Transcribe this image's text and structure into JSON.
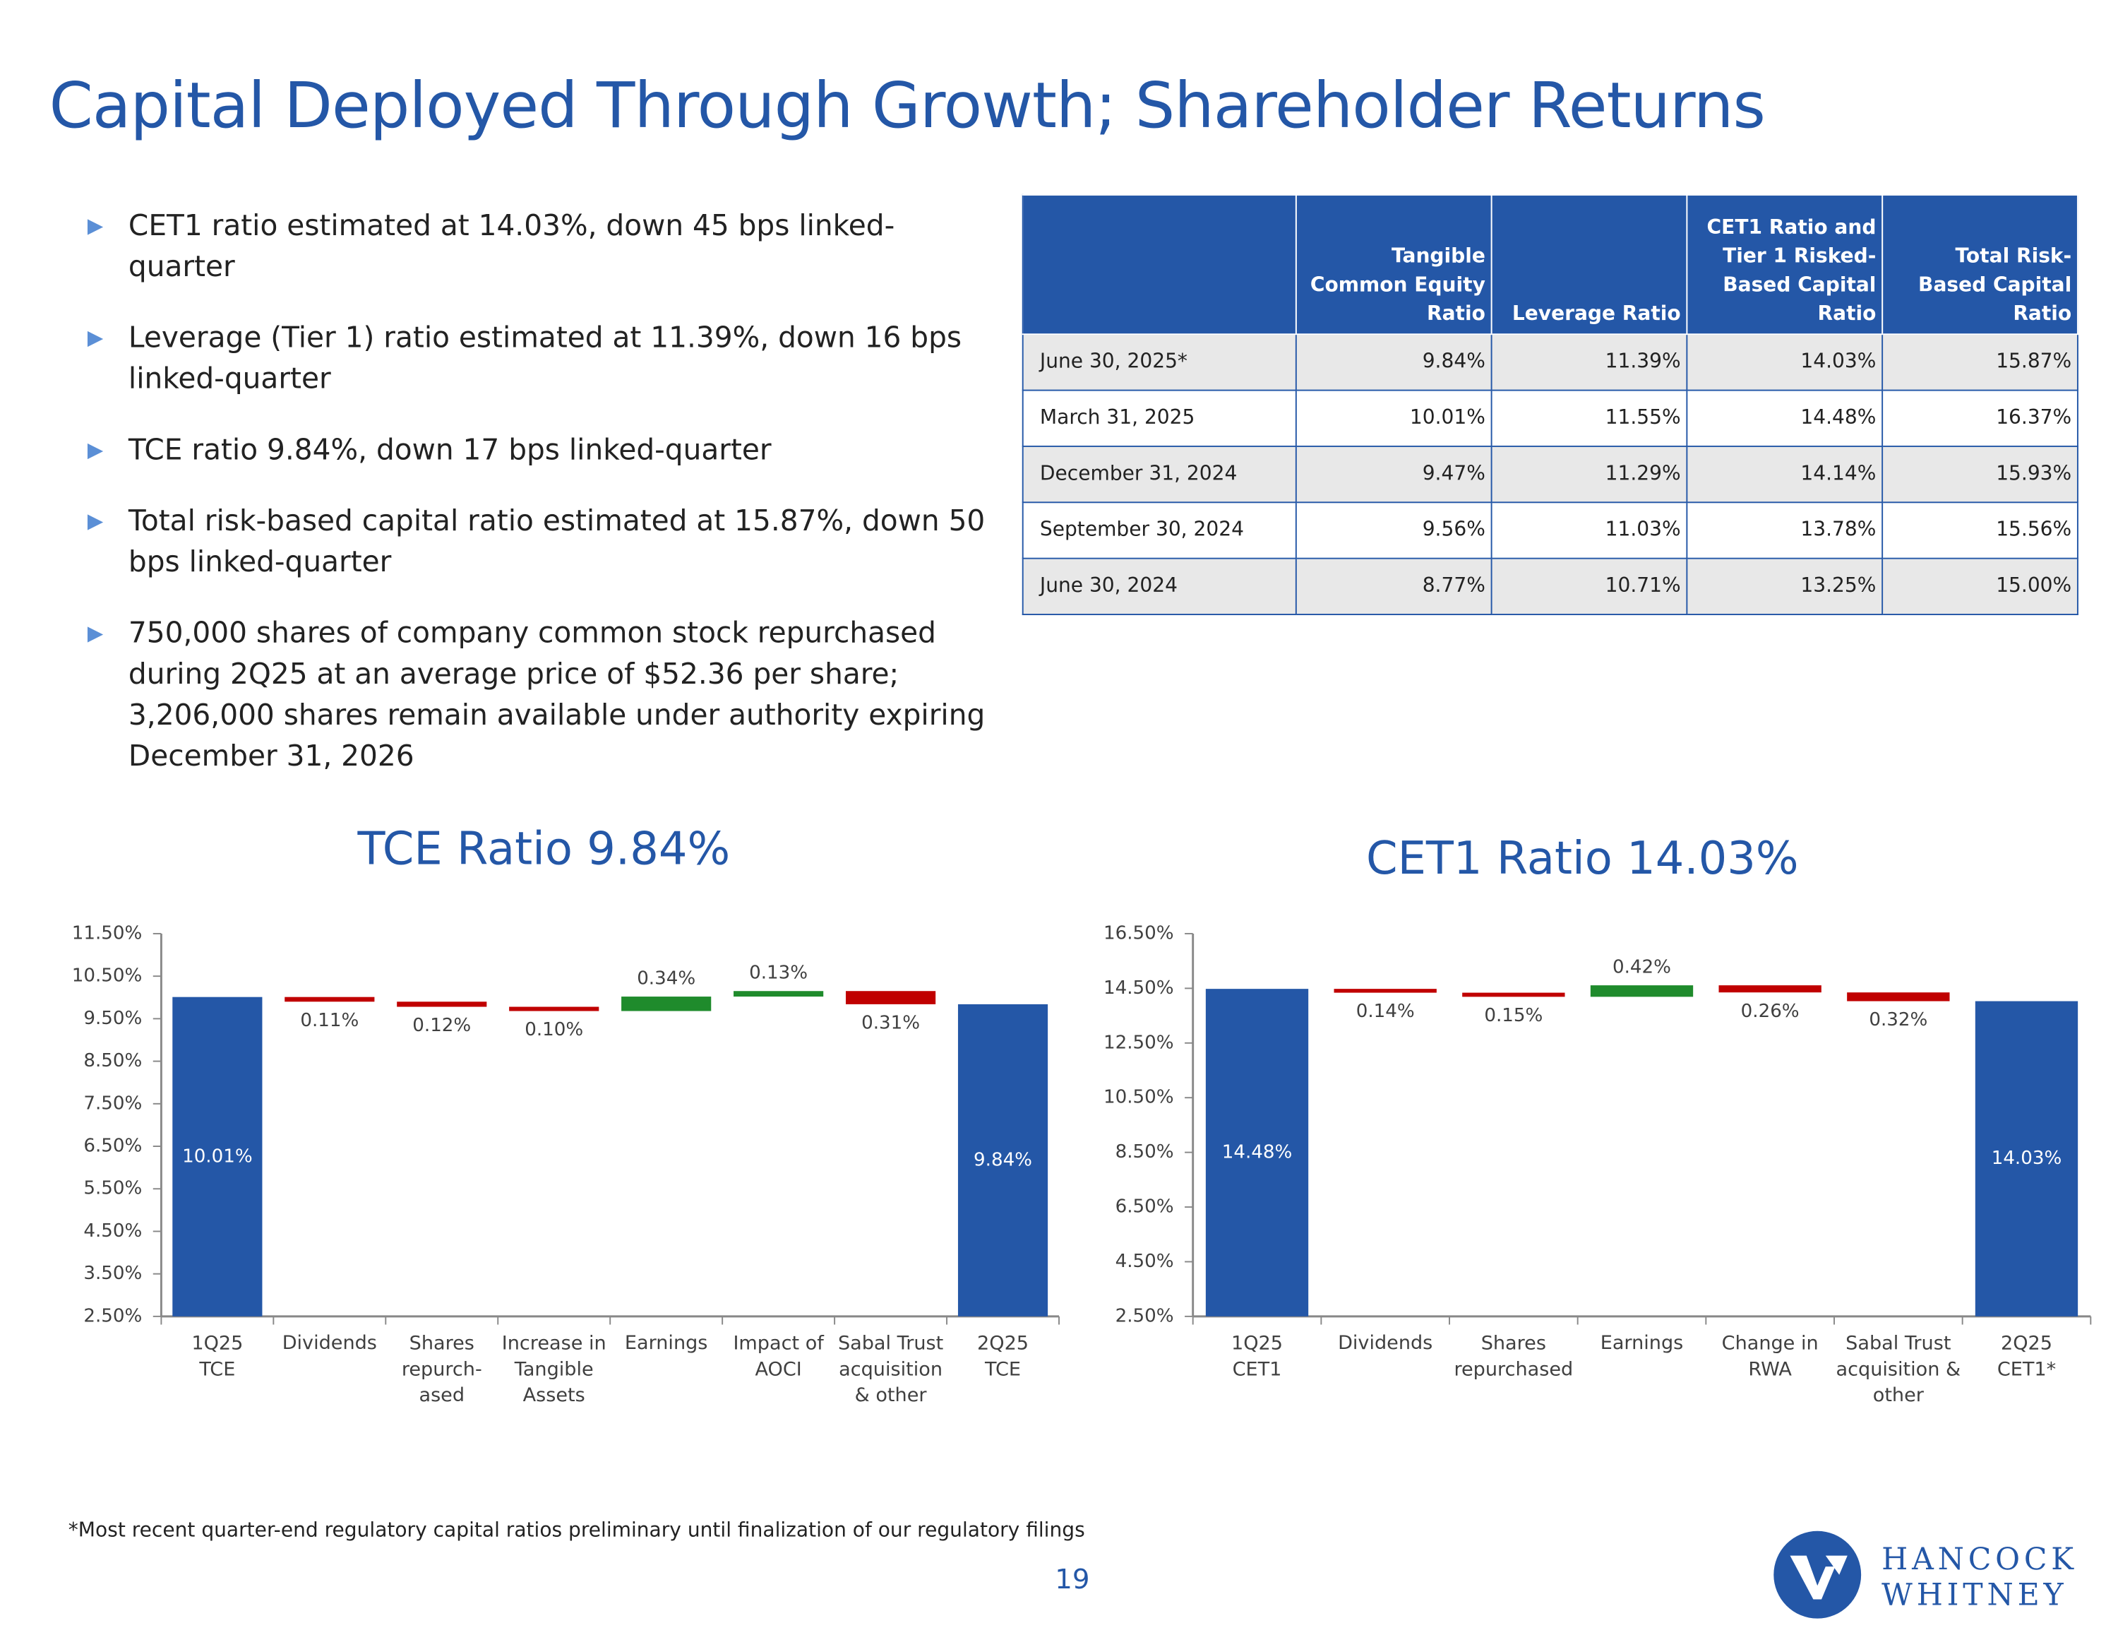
{
  "title": "Capital Deployed Through Growth; Shareholder Returns",
  "bullets": [
    "CET1 ratio estimated at 14.03%, down 45 bps linked-quarter",
    "Leverage (Tier 1) ratio estimated at 11.39%, down 16 bps linked-quarter",
    "TCE ratio 9.84%, down 17 bps linked-quarter",
    "Total risk-based capital ratio estimated at 15.87%, down 50 bps linked-quarter",
    "750,000 shares of company common stock repurchased during 2Q25 at an average price of $52.36 per share; 3,206,000 shares remain available under authority expiring December 31, 2026"
  ],
  "table": {
    "header": [
      "Tangible Common Equity Ratio",
      "Leverage Ratio",
      "CET1 Ratio and Tier 1 Risked-Based Capital Ratio",
      "Total Risk-Based Capital Ratio"
    ],
    "rows": [
      [
        "June 30, 2025*",
        "9.84%",
        "11.39%",
        "14.03%",
        "15.87%"
      ],
      [
        "March 31, 2025",
        "10.01%",
        "11.55%",
        "14.48%",
        "16.37%"
      ],
      [
        "December 31, 2024",
        "9.47%",
        "11.29%",
        "14.14%",
        "15.93%"
      ],
      [
        "September 30, 2024",
        "9.56%",
        "11.03%",
        "13.78%",
        "15.56%"
      ],
      [
        "June 30, 2024",
        "8.77%",
        "10.71%",
        "13.25%",
        "15.00%"
      ]
    ]
  },
  "chart_data": [
    {
      "type": "waterfall",
      "title": "TCE Ratio 9.84%",
      "categories": [
        "1Q25\nTCE",
        "Dividends",
        "Shares\nrepurch-\nased",
        "Increase in\nTangible\nAssets",
        "Earnings",
        "Impact of\nAOCI",
        "Sabal Trust\nacquisition\n& other",
        "2Q25\nTCE"
      ],
      "values": [
        10.01,
        -0.11,
        -0.12,
        -0.1,
        0.34,
        0.13,
        -0.31,
        9.84
      ],
      "value_labels": [
        "10.01%",
        "0.11%",
        "0.12%",
        "0.10%",
        "0.34%",
        "0.13%",
        "0.31%",
        "9.84%"
      ],
      "colors": {
        "total": "#2457a7",
        "increase": "#1f8b2c",
        "decrease": "#c00000"
      },
      "ylim": [
        2.5,
        11.5
      ],
      "yticks": [
        {
          "value": 2.5,
          "label": "2.50%"
        },
        {
          "value": 3.5,
          "label": "3.50%"
        },
        {
          "value": 4.5,
          "label": "4.50%"
        },
        {
          "value": 5.5,
          "label": "5.50%"
        },
        {
          "value": 6.5,
          "label": "6.50%"
        },
        {
          "value": 7.5,
          "label": "7.50%"
        },
        {
          "value": 8.5,
          "label": "8.50%"
        },
        {
          "value": 9.5,
          "label": "9.50%"
        },
        {
          "value": 10.5,
          "label": "10.50%"
        },
        {
          "value": 11.5,
          "label": "11.50%"
        }
      ]
    },
    {
      "type": "waterfall",
      "title": "CET1 Ratio 14.03%",
      "categories": [
        "1Q25\nCET1",
        "Dividends",
        "Shares\nrepurchased",
        "Earnings",
        "Change in\nRWA",
        "Sabal Trust\nacquisition &\nother",
        "2Q25\nCET1*"
      ],
      "values": [
        14.48,
        -0.14,
        -0.15,
        0.42,
        -0.26,
        -0.32,
        14.03
      ],
      "value_labels": [
        "14.48%",
        "0.14%",
        "0.15%",
        "0.42%",
        "0.26%",
        "0.32%",
        "14.03%"
      ],
      "colors": {
        "total": "#2457a7",
        "increase": "#1f8b2c",
        "decrease": "#c00000"
      },
      "ylim": [
        2.5,
        16.5
      ],
      "yticks": [
        {
          "value": 2.5,
          "label": "2.50%"
        },
        {
          "value": 4.5,
          "label": "4.50%"
        },
        {
          "value": 6.5,
          "label": "6.50%"
        },
        {
          "value": 8.5,
          "label": "8.50%"
        },
        {
          "value": 10.5,
          "label": "10.50%"
        },
        {
          "value": 12.5,
          "label": "12.50%"
        },
        {
          "value": 14.5,
          "label": "14.50%"
        },
        {
          "value": 16.5,
          "label": "16.50%"
        }
      ]
    }
  ],
  "footnote": "*Most recent quarter-end regulatory capital ratios preliminary until finalization of our regulatory filings",
  "page_number": "19",
  "logo": {
    "line1": "HANCOCK",
    "line2": "WHITNEY"
  }
}
